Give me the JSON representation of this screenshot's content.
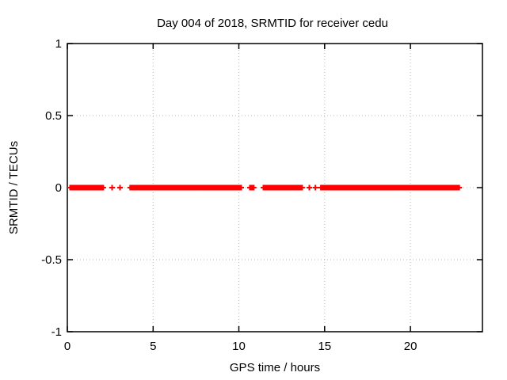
{
  "chart_data": {
    "type": "scatter",
    "title": "Day 004 of 2018, SRMTID for receiver cedu",
    "xlabel": "GPS time / hours",
    "ylabel": "SRMTID / TECUs",
    "xlim": [
      0,
      24.2
    ],
    "ylim": [
      -1,
      1
    ],
    "xticks": [
      0,
      5,
      10,
      15,
      20
    ],
    "xtick_labels": [
      "0",
      "5",
      "10",
      "15",
      "20"
    ],
    "yticks": [
      -1,
      -0.5,
      0,
      0.5,
      1
    ],
    "ytick_labels": [
      "-1",
      "-0.5",
      "0",
      "0.5",
      "1"
    ],
    "grid": true,
    "legend_position": "none",
    "marker": "plus",
    "marker_color": "#ff0000",
    "grid_color": "#b8b8b8",
    "axis_color": "#000000",
    "series": [
      {
        "name": "SRMTID",
        "y_value": 0,
        "dense_segments_hours": [
          [
            0.0,
            2.26
          ],
          [
            3.5,
            10.3
          ],
          [
            10.48,
            11.03
          ],
          [
            11.27,
            13.85
          ],
          [
            14.62,
            23.01
          ]
        ],
        "isolated_points_hours": [
          2.61,
          3.07,
          14.11,
          14.46
        ]
      }
    ]
  }
}
